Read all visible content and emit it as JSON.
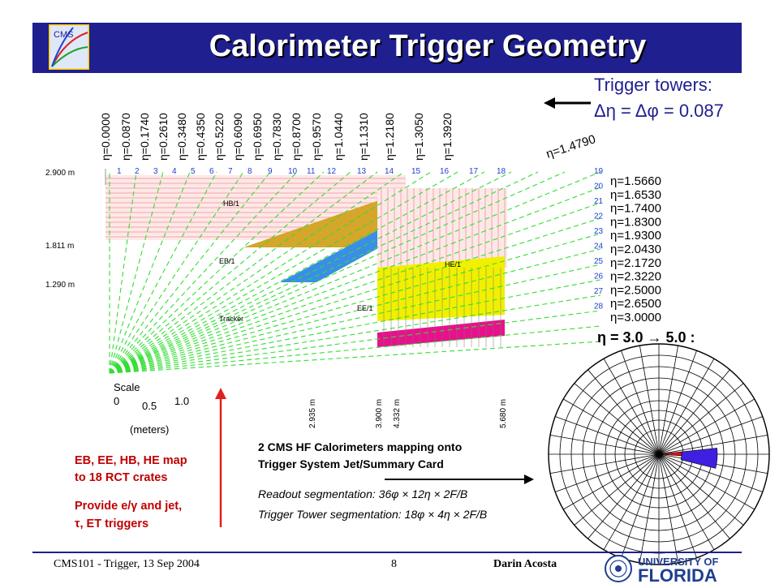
{
  "title": "Calorimeter Trigger Geometry",
  "header_logo": "CMS",
  "trigger_towers": {
    "title": "Trigger towers:",
    "equation": "Δη = Δφ = 0.087"
  },
  "diagram": {
    "eta_labels": [
      "η=0.0000",
      "η=0.0870",
      "η=0.1740",
      "η=0.2610",
      "η=0.3480",
      "η=0.4350",
      "η=0.5220",
      "η=0.6090",
      "η=0.6950",
      "η=0.7830",
      "η=0.8700",
      "η=0.9570",
      "η=1.0440",
      "η=1.1310",
      "η=1.2180",
      "η=1.3050",
      "η=1.3920"
    ],
    "eta_diag_label": "η=1.4790",
    "tower_numbers": [
      "1",
      "2",
      "3",
      "4",
      "5",
      "6",
      "7",
      "8",
      "9",
      "10",
      "11",
      "12",
      "13",
      "14",
      "15",
      "16",
      "17",
      "18"
    ],
    "right_tower_numbers": [
      "19",
      "20",
      "21",
      "22",
      "23",
      "24",
      "25",
      "26",
      "27",
      "28"
    ],
    "right_eta_labels": [
      "η=1.5660",
      "η=1.6530",
      "η=1.7400",
      "η=1.8300",
      "η=1.9300",
      "η=2.0430",
      "η=2.1720",
      "η=2.3220",
      "η=2.5000",
      "η=2.6500",
      "η=3.0000"
    ],
    "radius_labels": [
      "2.900 m",
      "1.811 m",
      "1.290 m"
    ],
    "z_labels": [
      "2.935 m",
      "3.900 m",
      "4.332 m",
      "5.680 m"
    ],
    "region_labels": {
      "hb": "HB/1",
      "eb": "EB/1",
      "he": "HE/1",
      "ee": "EE/1",
      "tracker": "Tracker"
    },
    "scale": {
      "title": "Scale",
      "ticks": [
        "0",
        "0.5",
        "1.0"
      ],
      "unit": "(meters)"
    }
  },
  "hf": {
    "eta_range": "η = 3.0 → 5.0 :",
    "line1": "2 CMS HF Calorimeters mapping onto",
    "line2": "Trigger System Jet/Summary Card",
    "readout": "Readout segmentation: 36φ × 12η × 2F/B",
    "trigger": "Trigger Tower segmentation: 18φ × 4η × 2F/B"
  },
  "rct": {
    "line1": "EB, EE, HB, HE map",
    "line2": "to 18 RCT crates",
    "line3": "Provide e/γ and jet,",
    "line4": "τ, ET triggers"
  },
  "footer": {
    "left": "CMS101 - Trigger, 13 Sep 2004",
    "page": "8",
    "author": "Darin Acosta",
    "uf_line1": "UNIVERSITY OF",
    "uf_line2": "FLORIDA"
  },
  "colors": {
    "title_bg": "#1f1f8f",
    "accent_red": "#c00000",
    "hb": "#d4a62a",
    "eb": "#3a8ee6",
    "ee_yellow": "#f0f000",
    "ee_magenta": "#e8108c",
    "hf_blue": "#4020e0",
    "hf_red": "#e01010",
    "green_lines": "#33dd33"
  }
}
